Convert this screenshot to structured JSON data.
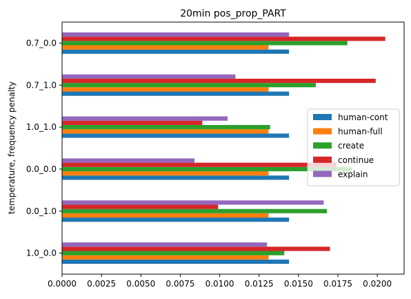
{
  "chart_data": {
    "type": "bar",
    "orientation": "horizontal",
    "title": "20min pos_prop_PART",
    "xlabel": "",
    "ylabel": "temperature, frequency penalty",
    "categories": [
      "1.0_0.0",
      "0.0_1.0",
      "0.0_0.0",
      "1.0_1.0",
      "0.7_1.0",
      "0.7_0.0"
    ],
    "xlim": [
      0,
      0.0217
    ],
    "xticks": [
      0.0,
      0.0025,
      0.005,
      0.0075,
      0.01,
      0.0125,
      0.015,
      0.0175,
      0.02
    ],
    "xtick_labels": [
      "0.0000",
      "0.0025",
      "0.0050",
      "0.0075",
      "0.0100",
      "0.0125",
      "0.0150",
      "0.0175",
      "0.0200"
    ],
    "grid": false,
    "legend_position": "center-right",
    "series": [
      {
        "name": "human-cont",
        "color": "#1f77b4",
        "values": [
          0.0144,
          0.0144,
          0.0144,
          0.0144,
          0.0144,
          0.0144
        ]
      },
      {
        "name": "human-full",
        "color": "#ff7f0e",
        "values": [
          0.0131,
          0.0131,
          0.0131,
          0.0131,
          0.0131,
          0.0131
        ]
      },
      {
        "name": "create",
        "color": "#2ca02c",
        "values": [
          0.0141,
          0.0168,
          0.0184,
          0.0132,
          0.0161,
          0.0181
        ]
      },
      {
        "name": "continue",
        "color": "#d62728",
        "values": [
          0.017,
          0.0099,
          0.0174,
          0.0089,
          0.0199,
          0.0205
        ]
      },
      {
        "name": "explain",
        "color": "#9467bd",
        "values": [
          0.013,
          0.0166,
          0.0084,
          0.0105,
          0.011,
          0.0144
        ]
      }
    ]
  }
}
